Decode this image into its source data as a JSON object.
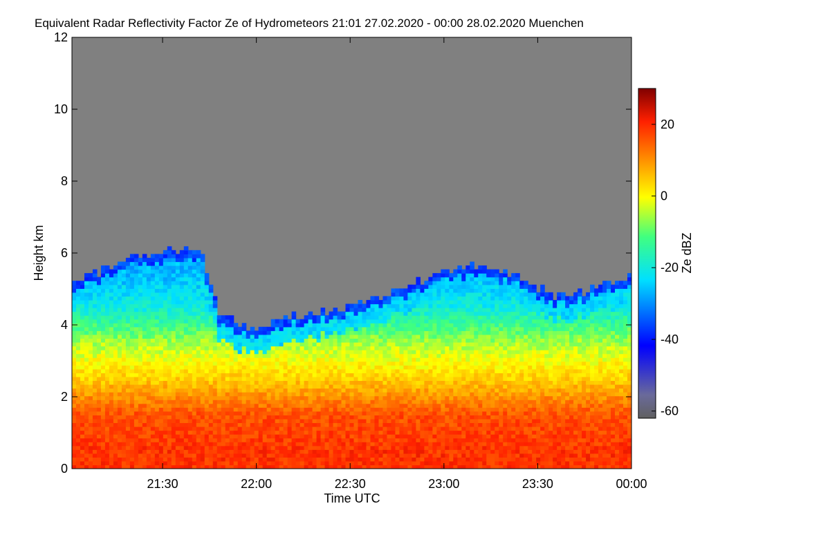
{
  "chart_data": {
    "type": "heatmap",
    "title": "Equivalent Radar Reflectivity Factor Ze of Hydrometeors   21:01 27.02.2020 - 00:00 28.02.2020 Muenchen",
    "xlabel": "Time UTC",
    "ylabel": "Height km",
    "x_range_hours": [
      21.0167,
      24.0
    ],
    "x_ticks": [
      {
        "label": "21:30",
        "value": 21.5
      },
      {
        "label": "22:00",
        "value": 22.0
      },
      {
        "label": "22:30",
        "value": 22.5
      },
      {
        "label": "23:00",
        "value": 23.0
      },
      {
        "label": "23:30",
        "value": 23.5
      },
      {
        "label": "00:00",
        "value": 24.0
      }
    ],
    "ylim": [
      0,
      12
    ],
    "y_ticks": [
      0,
      2,
      4,
      6,
      8,
      10,
      12
    ],
    "colorbar": {
      "label": "Ze dBZ",
      "range": [
        -62,
        30
      ],
      "ticks": [
        -60,
        -40,
        -20,
        0,
        20
      ],
      "below_threshold_color": "#808080"
    },
    "cloud_top_km": [
      {
        "t": 21.02,
        "h": 5.3
      },
      {
        "t": 21.15,
        "h": 5.4
      },
      {
        "t": 21.3,
        "h": 5.9
      },
      {
        "t": 21.5,
        "h": 6.0
      },
      {
        "t": 21.7,
        "h": 6.1
      },
      {
        "t": 21.8,
        "h": 4.3
      },
      {
        "t": 22.0,
        "h": 3.8
      },
      {
        "t": 22.1,
        "h": 4.2
      },
      {
        "t": 22.4,
        "h": 4.4
      },
      {
        "t": 22.6,
        "h": 4.7
      },
      {
        "t": 22.8,
        "h": 5.1
      },
      {
        "t": 23.0,
        "h": 5.5
      },
      {
        "t": 23.2,
        "h": 5.7
      },
      {
        "t": 23.4,
        "h": 5.3
      },
      {
        "t": 23.6,
        "h": 4.8
      },
      {
        "t": 23.8,
        "h": 5.0
      },
      {
        "t": 24.0,
        "h": 5.4
      }
    ],
    "reflectivity_layers_dbz": [
      {
        "height_km": 0.5,
        "dbz": 18
      },
      {
        "height_km": 1.5,
        "dbz": 15
      },
      {
        "height_km": 2.5,
        "dbz": 2
      },
      {
        "height_km": 3.5,
        "dbz": -8
      },
      {
        "height_km": 4.5,
        "dbz": -22
      },
      {
        "height_km": 5.5,
        "dbz": -28
      }
    ]
  }
}
